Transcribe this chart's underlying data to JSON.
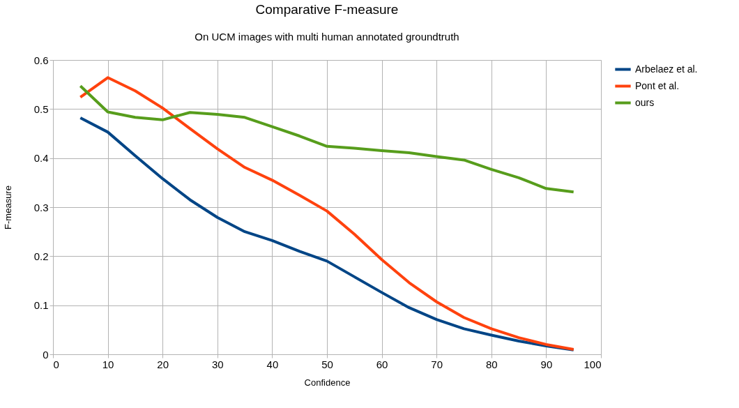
{
  "chart_data": {
    "type": "line",
    "title": "Comparative F-measure",
    "subtitle": "On UCM images with multi human annotated groundtruth",
    "xlabel": "Confidence",
    "ylabel": "F-measure",
    "x": [
      5,
      10,
      15,
      20,
      25,
      30,
      35,
      40,
      45,
      50,
      55,
      60,
      65,
      70,
      75,
      80,
      85,
      90,
      95
    ],
    "series": [
      {
        "name": "Arbelaez et al.",
        "color": "#004586",
        "values": [
          0.482,
          0.453,
          0.405,
          0.358,
          0.315,
          0.279,
          0.25,
          0.232,
          0.21,
          0.19,
          0.158,
          0.126,
          0.095,
          0.071,
          0.052,
          0.039,
          0.027,
          0.017,
          0.009
        ]
      },
      {
        "name": "Pont et al.",
        "color": "#ff420e",
        "values": [
          0.524,
          0.564,
          0.537,
          0.502,
          0.46,
          0.419,
          0.381,
          0.355,
          0.324,
          0.292,
          0.245,
          0.193,
          0.146,
          0.107,
          0.075,
          0.052,
          0.034,
          0.02,
          0.01
        ]
      },
      {
        "name": "ours",
        "color": "#579d1c",
        "values": [
          0.547,
          0.494,
          0.483,
          0.478,
          0.493,
          0.489,
          0.483,
          0.464,
          0.445,
          0.424,
          0.42,
          0.415,
          0.411,
          0.403,
          0.396,
          0.377,
          0.36,
          0.338,
          0.331
        ]
      }
    ],
    "xlim": [
      0,
      100
    ],
    "xticks": [
      0,
      10,
      20,
      30,
      40,
      50,
      60,
      70,
      80,
      90,
      100
    ],
    "ylim": [
      0,
      0.6
    ],
    "yticks": [
      0,
      0.1,
      0.2,
      0.3,
      0.4,
      0.5,
      0.6
    ],
    "grid": true,
    "legend": "right",
    "marker": "none",
    "line_style": "solid"
  }
}
